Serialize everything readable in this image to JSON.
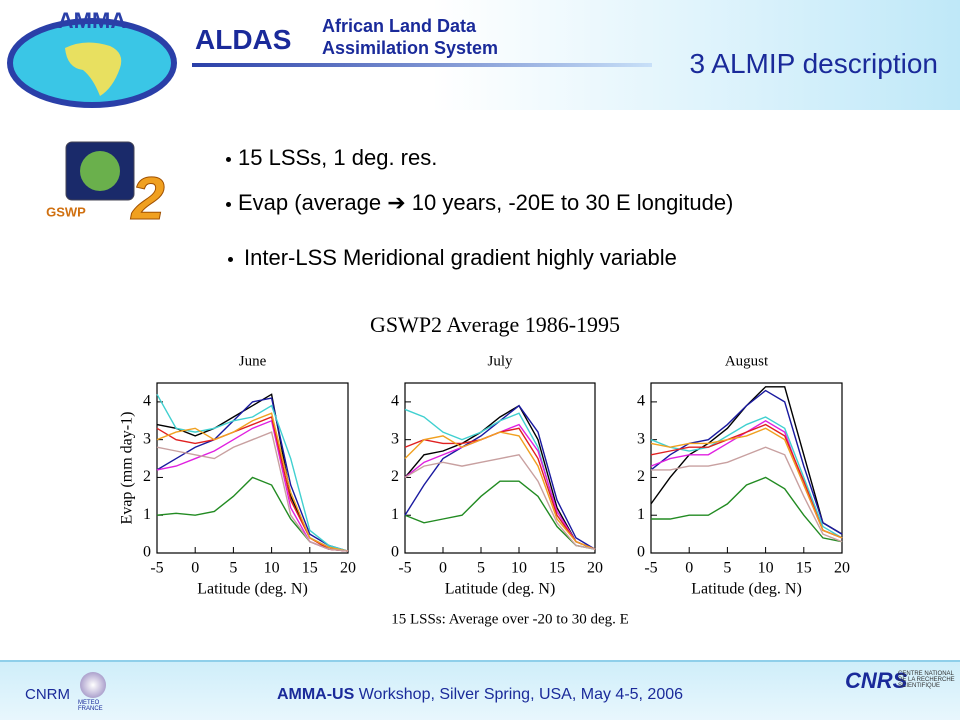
{
  "header": {
    "logo_text": "AMMA",
    "brand": "ALDAS",
    "brand_sub_1": "African Land Data",
    "brand_sub_2": "Assimilation System",
    "title": "3 ALMIP description"
  },
  "gswp_logo": {
    "text": "GSWP",
    "number": "2"
  },
  "bullets": [
    "15 LSSs, 1 deg. res.",
    "Evap (average ➔ 10 years, -20E to 30 E longitude)",
    "Inter-LSS Meridional gradient highly variable"
  ],
  "figure": {
    "title": "GSWP2 Average 1986-1995",
    "caption": "15 LSSs: Average over -20 to 30 deg. E"
  },
  "chart_data": [
    {
      "type": "line",
      "title": "June",
      "x_label": "Latitude (deg. N)",
      "y_label": "Evap (mm day-1)",
      "x": [
        -5,
        -2.5,
        0,
        2.5,
        5,
        7.5,
        10,
        12.5,
        15,
        17.5,
        20
      ],
      "xlim": [
        -5,
        20
      ],
      "ylim": [
        0,
        4.5
      ],
      "xticks": [
        -5,
        0,
        5,
        10,
        15,
        20
      ],
      "yticks": [
        0,
        1,
        2,
        3,
        4
      ],
      "series": [
        {
          "color": "#228b22",
          "values": [
            1.0,
            1.05,
            1.0,
            1.1,
            1.5,
            2.0,
            1.8,
            0.9,
            0.3,
            0.1,
            0.05
          ]
        },
        {
          "color": "#000000",
          "values": [
            3.4,
            3.3,
            3.1,
            3.3,
            3.6,
            3.9,
            4.2,
            1.5,
            0.4,
            0.15,
            0.05
          ]
        },
        {
          "color": "#1a1aa0",
          "values": [
            2.2,
            2.5,
            2.8,
            3.0,
            3.5,
            4.0,
            4.1,
            1.8,
            0.5,
            0.2,
            0.05
          ]
        },
        {
          "color": "#40d0d0",
          "values": [
            4.2,
            3.3,
            3.2,
            3.3,
            3.5,
            3.6,
            3.9,
            2.5,
            0.6,
            0.2,
            0.05
          ]
        },
        {
          "color": "#e020e0",
          "values": [
            2.2,
            2.3,
            2.5,
            2.7,
            3.0,
            3.3,
            3.5,
            1.2,
            0.3,
            0.1,
            0.05
          ]
        },
        {
          "color": "#e02020",
          "values": [
            3.3,
            3.0,
            2.9,
            3.0,
            3.2,
            3.4,
            3.6,
            1.4,
            0.4,
            0.1,
            0.05
          ]
        },
        {
          "color": "#f0a020",
          "values": [
            3.0,
            3.2,
            3.3,
            3.0,
            3.2,
            3.5,
            3.7,
            1.6,
            0.4,
            0.15,
            0.05
          ]
        },
        {
          "color": "#c8a0a0",
          "values": [
            2.8,
            2.7,
            2.6,
            2.5,
            2.8,
            3.0,
            3.2,
            1.0,
            0.3,
            0.1,
            0.05
          ]
        }
      ]
    },
    {
      "type": "line",
      "title": "July",
      "x_label": "Latitude (deg. N)",
      "x": [
        -5,
        -2.5,
        0,
        2.5,
        5,
        7.5,
        10,
        12.5,
        15,
        17.5,
        20
      ],
      "xlim": [
        -5,
        20
      ],
      "ylim": [
        0,
        4.5
      ],
      "xticks": [
        -5,
        0,
        5,
        10,
        15,
        20
      ],
      "yticks": [
        0,
        1,
        2,
        3,
        4
      ],
      "series": [
        {
          "color": "#228b22",
          "values": [
            1.0,
            0.8,
            0.9,
            1.0,
            1.5,
            1.9,
            1.9,
            1.5,
            0.7,
            0.2,
            0.1
          ]
        },
        {
          "color": "#000000",
          "values": [
            2.0,
            2.6,
            2.7,
            2.9,
            3.2,
            3.6,
            3.9,
            3.0,
            1.2,
            0.3,
            0.1
          ]
        },
        {
          "color": "#1a1aa0",
          "values": [
            1.0,
            1.8,
            2.5,
            2.8,
            3.1,
            3.5,
            3.9,
            3.2,
            1.4,
            0.4,
            0.1
          ]
        },
        {
          "color": "#40d0d0",
          "values": [
            3.8,
            3.6,
            3.2,
            3.0,
            3.2,
            3.5,
            3.7,
            2.8,
            1.0,
            0.3,
            0.1
          ]
        },
        {
          "color": "#e020e0",
          "values": [
            2.0,
            2.4,
            2.6,
            2.8,
            3.0,
            3.2,
            3.4,
            2.7,
            1.1,
            0.3,
            0.1
          ]
        },
        {
          "color": "#e02020",
          "values": [
            2.8,
            3.0,
            2.9,
            2.9,
            3.0,
            3.2,
            3.3,
            2.5,
            1.0,
            0.3,
            0.1
          ]
        },
        {
          "color": "#f0a020",
          "values": [
            2.5,
            3.0,
            3.1,
            2.8,
            3.0,
            3.2,
            3.1,
            2.3,
            0.9,
            0.3,
            0.1
          ]
        },
        {
          "color": "#c8a0a0",
          "values": [
            2.0,
            2.3,
            2.4,
            2.3,
            2.4,
            2.5,
            2.6,
            1.9,
            0.8,
            0.2,
            0.1
          ]
        }
      ]
    },
    {
      "type": "line",
      "title": "August",
      "x_label": "Latitude (deg. N)",
      "x": [
        -5,
        -2.5,
        0,
        2.5,
        5,
        7.5,
        10,
        12.5,
        15,
        17.5,
        20
      ],
      "xlim": [
        -5,
        20
      ],
      "ylim": [
        0,
        4.5
      ],
      "xticks": [
        -5,
        0,
        5,
        10,
        15,
        20
      ],
      "yticks": [
        0,
        1,
        2,
        3,
        4
      ],
      "series": [
        {
          "color": "#228b22",
          "values": [
            0.9,
            0.9,
            1.0,
            1.0,
            1.3,
            1.8,
            2.0,
            1.7,
            1.0,
            0.4,
            0.3
          ]
        },
        {
          "color": "#000000",
          "values": [
            1.3,
            2.0,
            2.6,
            2.9,
            3.3,
            3.9,
            4.4,
            4.4,
            2.6,
            0.8,
            0.5
          ]
        },
        {
          "color": "#1a1aa0",
          "values": [
            2.2,
            2.6,
            2.9,
            3.0,
            3.4,
            3.9,
            4.3,
            4.0,
            2.3,
            0.8,
            0.5
          ]
        },
        {
          "color": "#40d0d0",
          "values": [
            3.0,
            2.8,
            2.7,
            2.8,
            3.1,
            3.4,
            3.6,
            3.3,
            2.0,
            0.7,
            0.4
          ]
        },
        {
          "color": "#e020e0",
          "values": [
            2.3,
            2.5,
            2.6,
            2.6,
            2.9,
            3.2,
            3.5,
            3.2,
            1.8,
            0.6,
            0.4
          ]
        },
        {
          "color": "#e02020",
          "values": [
            2.6,
            2.7,
            2.8,
            2.8,
            3.0,
            3.2,
            3.4,
            3.1,
            1.9,
            0.6,
            0.4
          ]
        },
        {
          "color": "#f0a020",
          "values": [
            2.9,
            2.8,
            2.9,
            2.9,
            3.0,
            3.1,
            3.3,
            3.0,
            1.8,
            0.6,
            0.4
          ]
        },
        {
          "color": "#c8a0a0",
          "values": [
            2.2,
            2.2,
            2.3,
            2.3,
            2.4,
            2.6,
            2.8,
            2.6,
            1.5,
            0.5,
            0.3
          ]
        }
      ]
    }
  ],
  "footer": {
    "bold": "AMMA-US",
    "text": "Workshop, Silver Spring, USA, May 4-5, 2006",
    "left_logo": "CNRM",
    "left_logo_sub": "METEO FRANCE",
    "right_logo": "CNRS",
    "right_logo_sub": "CENTRE NATIONAL DE LA RECHERCHE SCIENTIFIQUE"
  }
}
